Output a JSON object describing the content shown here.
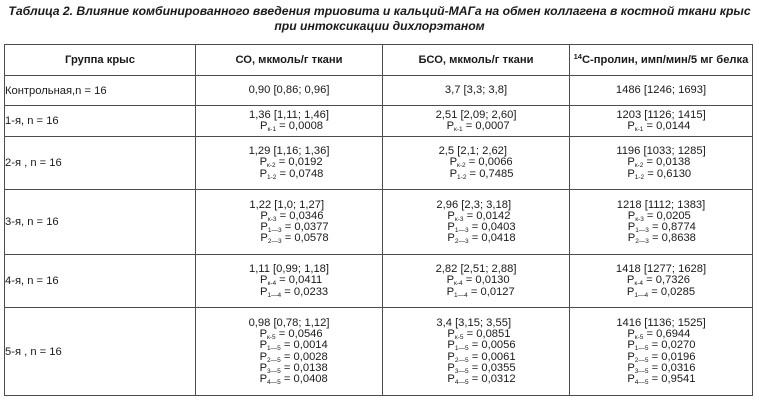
{
  "caption": {
    "line1": "Таблица 2. Влияние комбинированного введения триовита и кальций-МАГа на обмен коллагена в костной ткани крыс",
    "line2": "при интоксикации дихлорэтаном"
  },
  "headers": {
    "group": "Группа крыс",
    "so": "СО, мкмоль/г ткани",
    "bso": "БСО, мкмоль/г ткани",
    "proline_sup": "14",
    "proline": "С-пролин, имп/мин/5 мг белка"
  },
  "rows": [
    {
      "group": "Контрольная,n = 16",
      "so": {
        "main": "0,90 [0,86; 0,96]",
        "p": []
      },
      "bso": {
        "main": "3,7 [3,3; 3,8]",
        "p": []
      },
      "pro": {
        "main": "1486 [1246; 1693]",
        "p": []
      }
    },
    {
      "group": "1-я, n = 16",
      "so": {
        "main": "1,36 [1,11; 1,46]",
        "p": [
          {
            "sub": "к-1",
            "val": " = 0,0008"
          }
        ]
      },
      "bso": {
        "main": "2,51 [2,09; 2,60]",
        "p": [
          {
            "sub": "к-1",
            "val": " = 0,0007"
          }
        ]
      },
      "pro": {
        "main": "1203 [1126; 1415]",
        "p": [
          {
            "sub": "к-1",
            "val": " = 0,0144"
          }
        ]
      }
    },
    {
      "group": "2-я , n = 16",
      "so": {
        "main": "1,29 [1,16; 1,36]",
        "p": [
          {
            "sub": "к-2",
            "val": " = 0,0192"
          },
          {
            "sub": "1-2",
            "val": " = 0,0748"
          }
        ]
      },
      "bso": {
        "main": "2,5 [2,1; 2,62]",
        "p": [
          {
            "sub": "к-2",
            "val": " = 0,0066"
          },
          {
            "sub": "1-2",
            "val": " = 0,7485"
          }
        ]
      },
      "pro": {
        "main": "1196 [1033; 1285]",
        "p": [
          {
            "sub": "к-2",
            "val": " = 0,0138"
          },
          {
            "sub": "1-2",
            "val": " = 0,6130"
          }
        ]
      }
    },
    {
      "group": "3-я, n = 16",
      "so": {
        "main": "1,22 [1,0; 1,27]",
        "p": [
          {
            "sub": "к-3",
            "val": " = 0,0346"
          },
          {
            "sub": "1—3",
            "val": " = 0,0377"
          },
          {
            "sub": "2—3",
            "val": " = 0,0578"
          }
        ]
      },
      "bso": {
        "main": "2,96 [2,3; 3,18]",
        "p": [
          {
            "sub": "к-3",
            "val": " = 0,0142"
          },
          {
            "sub": "1—3",
            "val": " = 0,0403"
          },
          {
            "sub": "2—3",
            "val": " = 0,0418"
          }
        ]
      },
      "pro": {
        "main": "1218 [1112; 1383]",
        "p": [
          {
            "sub": "к-3",
            "val": " = 0,0205"
          },
          {
            "sub": "1—3",
            "val": " = 0,8774"
          },
          {
            "sub": "2—3",
            "val": " = 0,8638"
          }
        ]
      }
    },
    {
      "group": "4-я, n = 16",
      "so": {
        "main": "1,11 [0,99; 1,18]",
        "p": [
          {
            "sub": "к-4",
            "val": " = 0,0411"
          },
          {
            "sub": "1—4",
            "val": " = 0,0233"
          }
        ]
      },
      "bso": {
        "main": "2,82 [2,51; 2,88]",
        "p": [
          {
            "sub": "к-4",
            "val": " = 0,0130"
          },
          {
            "sub": "1—4",
            "val": " = 0,0127"
          }
        ]
      },
      "pro": {
        "main": "1418 [1277; 1628]",
        "p": [
          {
            "sub": "к-4",
            "val": " = 0,7326"
          },
          {
            "sub": "1—4",
            "val": " = 0,0285"
          }
        ]
      }
    },
    {
      "group": "5-я , n = 16",
      "so": {
        "main": "0,98 [0,78; 1,12]",
        "p": [
          {
            "sub": "к-5",
            "val": " = 0,0546"
          },
          {
            "sub": "1—5",
            "val": " = 0,0014"
          },
          {
            "sub": "2—5",
            "val": " = 0,0028"
          },
          {
            "sub": "3—5",
            "val": " = 0,0138"
          },
          {
            "sub": "4—5",
            "val": " = 0,0408"
          }
        ]
      },
      "bso": {
        "main": "3,4 [3,15; 3,55]",
        "p": [
          {
            "sub": "к-5",
            "val": " = 0,0851"
          },
          {
            "sub": "1—5",
            "val": " = 0,0056"
          },
          {
            "sub": "2—5",
            "val": " = 0,0061"
          },
          {
            "sub": "3—5",
            "val": " = 0,0355"
          },
          {
            "sub": "4—5",
            "val": " = 0,0312"
          }
        ]
      },
      "pro": {
        "main": "1416 [1136; 1525]",
        "p": [
          {
            "sub": "к-5",
            "val": " = 0,6944"
          },
          {
            "sub": "1—5",
            "val": " = 0,0270"
          },
          {
            "sub": "2—5",
            "val": " = 0,0196"
          },
          {
            "sub": "3—5",
            "val": " = 0,0316"
          },
          {
            "sub": "4—5",
            "val": " = 0,9541"
          }
        ]
      }
    }
  ]
}
